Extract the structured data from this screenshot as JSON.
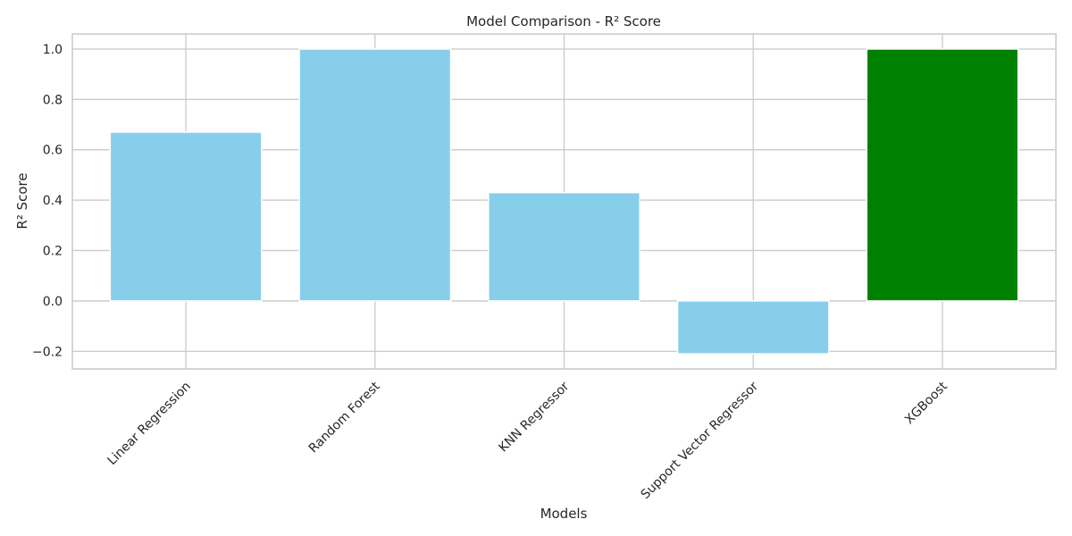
{
  "chart_data": {
    "type": "bar",
    "title": "Model Comparison - R² Score",
    "xlabel": "Models",
    "ylabel": "R² Score",
    "categories": [
      "Linear Regression",
      "Random Forest",
      "KNN Regressor",
      "Support Vector Regressor",
      "XGBoost"
    ],
    "values": [
      0.67,
      1.0,
      0.43,
      -0.21,
      1.0
    ],
    "colors": [
      "#87CEEB",
      "#87CEEB",
      "#87CEEB",
      "#87CEEB",
      "#008000"
    ],
    "ylim": [
      -0.27,
      1.06
    ],
    "yticks": [
      -0.2,
      0.0,
      0.2,
      0.4,
      0.6,
      0.8,
      1.0
    ],
    "ytick_labels": [
      "−0.2",
      "0.0",
      "0.2",
      "0.4",
      "0.6",
      "0.8",
      "1.0"
    ],
    "grid": true,
    "legend": "none",
    "style": {
      "grid_color": "#cccccc",
      "spine_color": "#cccccc",
      "text_color": "#262626",
      "background": "#ffffff"
    }
  }
}
